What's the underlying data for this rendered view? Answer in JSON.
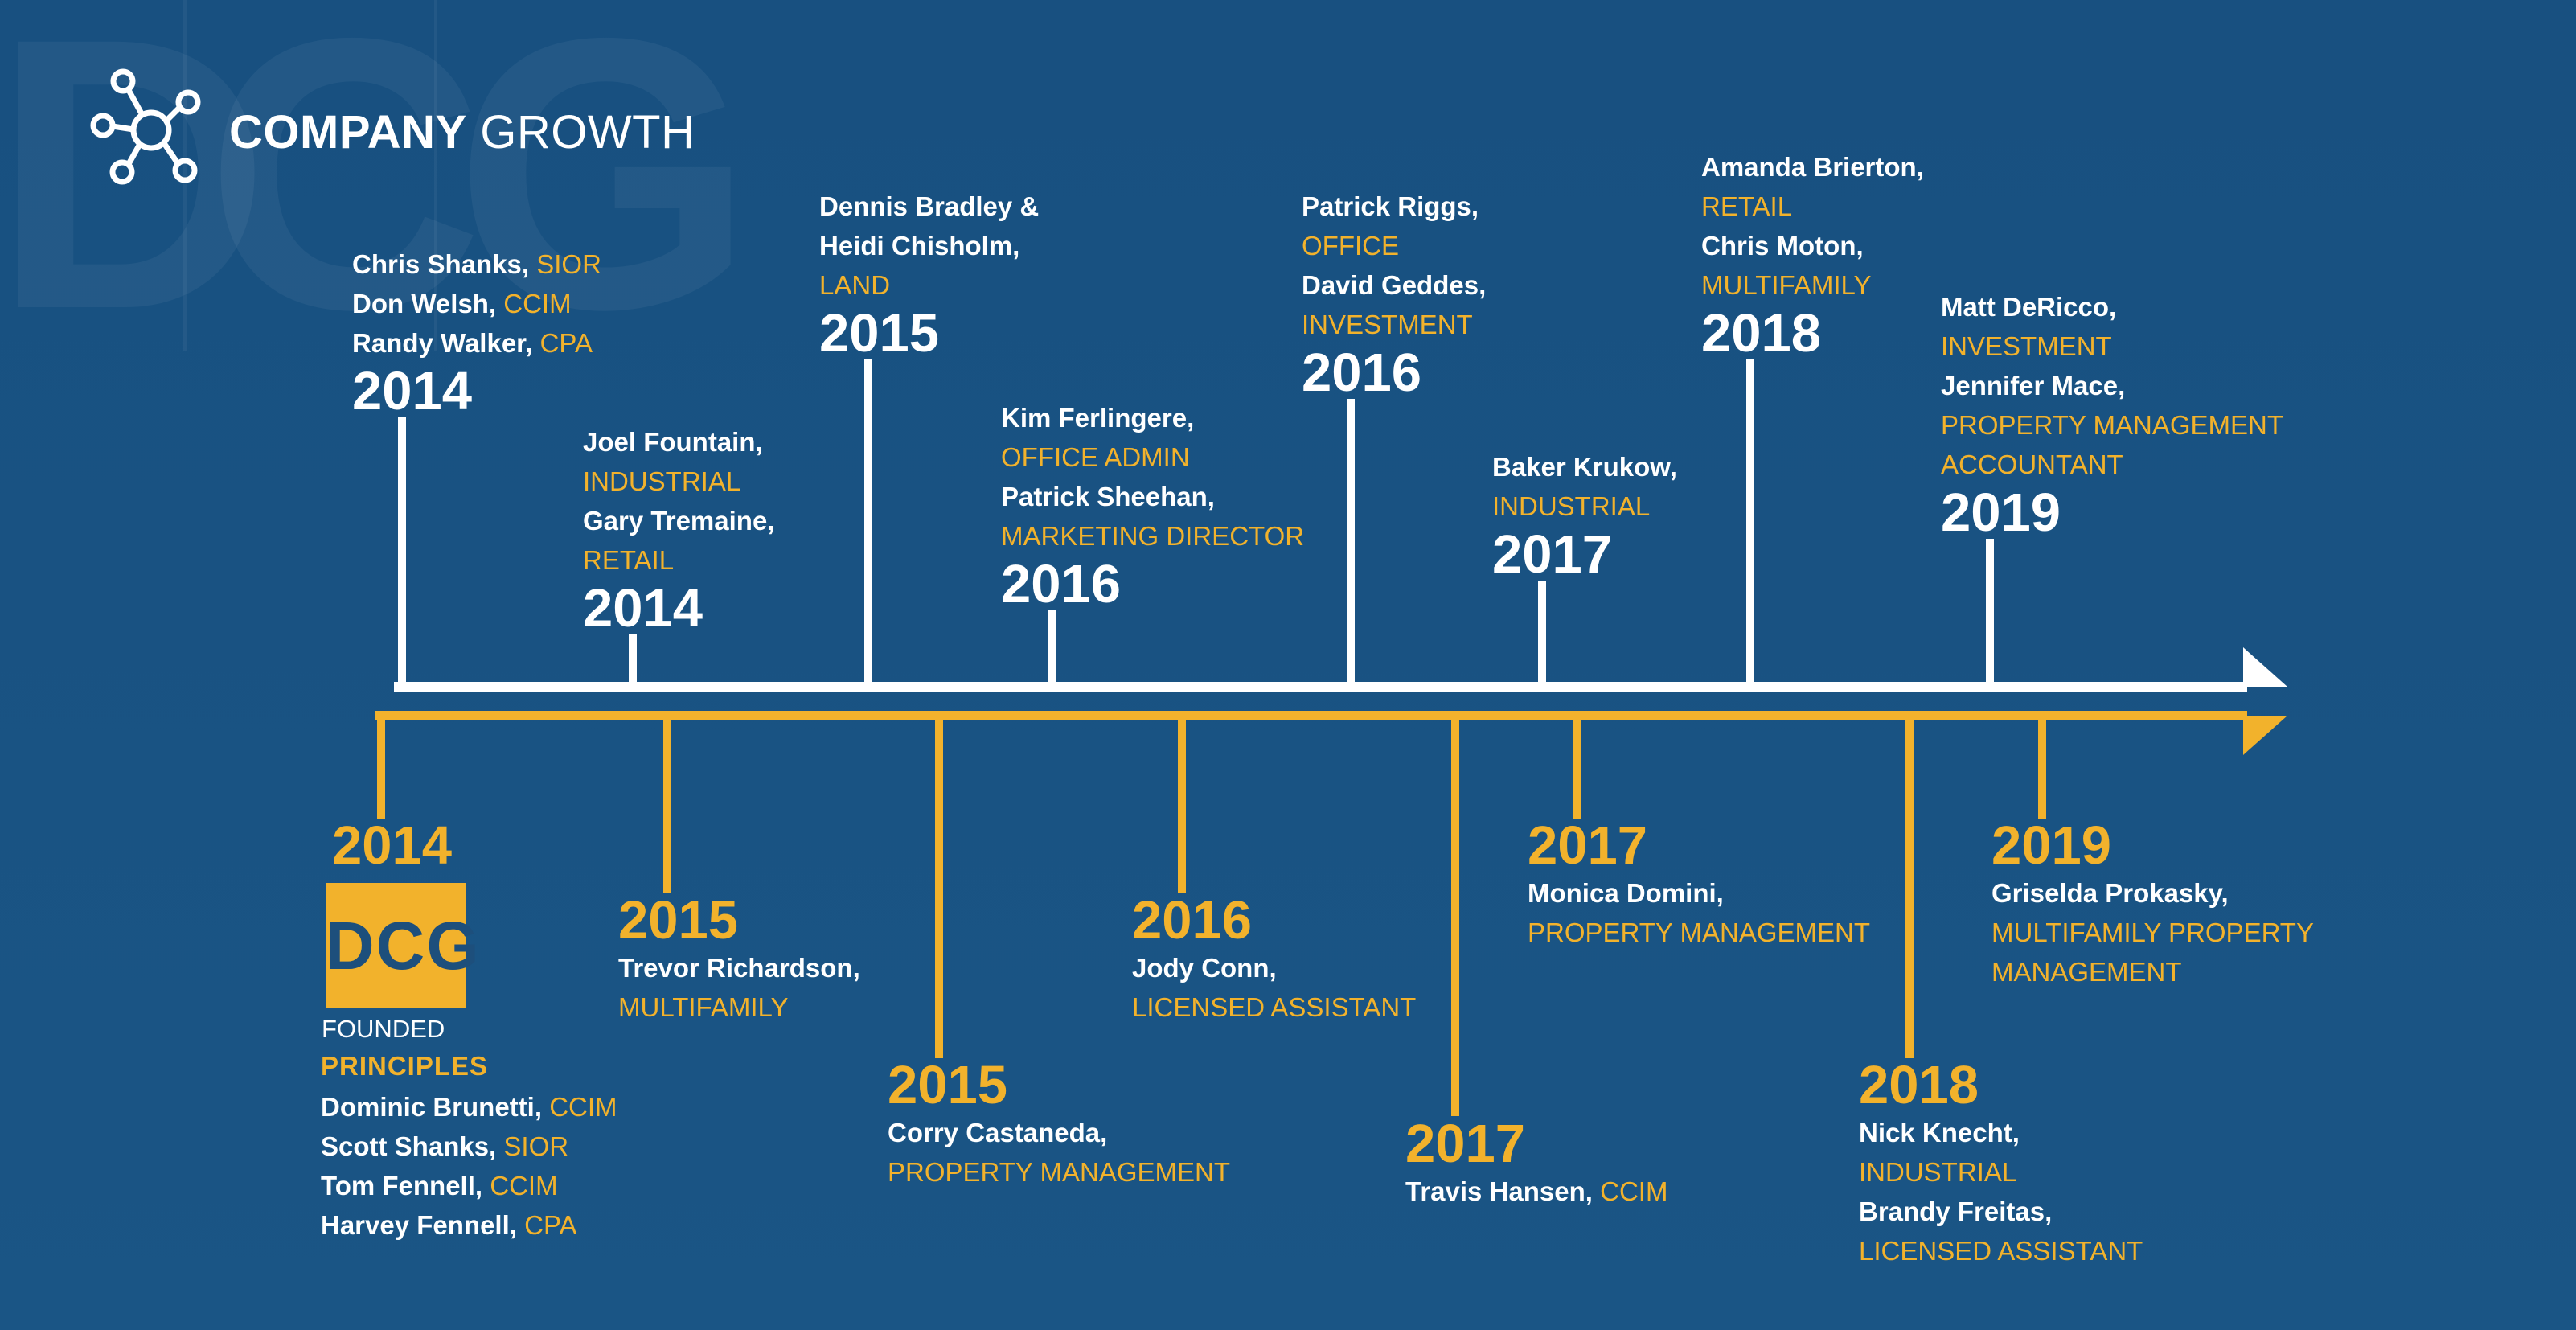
{
  "watermark": {
    "letters": [
      "D",
      "C",
      "G"
    ]
  },
  "header": {
    "title_strong": "COMPANY",
    "title_light": "GROWTH",
    "icon": "network-hub-icon"
  },
  "colors": {
    "background": "#1a5383",
    "white_line": "#ffffff",
    "gold_line": "#f2b22c",
    "accent": "#f2b22c"
  },
  "top_entries": [
    {
      "year": "2014",
      "lines": [
        {
          "name": "Chris Shanks,",
          "role": "SIOR",
          "inline": true
        },
        {
          "name": "Don Welsh,",
          "role": "CCIM",
          "inline": true
        },
        {
          "name": "Randy Walker,",
          "role": "CPA",
          "inline": true
        }
      ]
    },
    {
      "year": "2014",
      "lines": [
        {
          "name": "Joel Fountain,",
          "role": "INDUSTRIAL",
          "inline": false
        },
        {
          "name": "Gary Tremaine,",
          "role": "RETAIL",
          "inline": false
        }
      ]
    },
    {
      "year": "2015",
      "lines": [
        {
          "name": "Dennis Bradley &",
          "role": "",
          "inline": false
        },
        {
          "name": "Heidi Chisholm,",
          "role": "LAND",
          "inline": false
        }
      ]
    },
    {
      "year": "2016",
      "lines": [
        {
          "name": "Kim Ferlingere,",
          "role": "OFFICE ADMIN",
          "inline": false
        },
        {
          "name": "Patrick Sheehan,",
          "role": "MARKETING DIRECTOR",
          "inline": false
        }
      ]
    },
    {
      "year": "2016",
      "lines": [
        {
          "name": "Patrick Riggs,",
          "role": "OFFICE",
          "inline": false
        },
        {
          "name": "David Geddes,",
          "role": "INVESTMENT",
          "inline": false
        }
      ]
    },
    {
      "year": "2017",
      "lines": [
        {
          "name": "Baker Krukow,",
          "role": "INDUSTRIAL",
          "inline": false
        }
      ]
    },
    {
      "year": "2018",
      "lines": [
        {
          "name": "Amanda Brierton,",
          "role": "RETAIL",
          "inline": false
        },
        {
          "name": "Chris Moton,",
          "role": "MULTIFAMILY",
          "inline": false
        }
      ]
    },
    {
      "year": "2019",
      "lines": [
        {
          "name": "Matt DeRicco,",
          "role": "INVESTMENT",
          "inline": false
        },
        {
          "name": "Jennifer Mace,",
          "role": "PROPERTY MANAGEMENT",
          "inline": false
        },
        {
          "name": "",
          "role": "ACCOUNTANT",
          "inline": false
        }
      ]
    }
  ],
  "bottom_entries": [
    {
      "year": "2014",
      "logo_text": "DCG",
      "founded_label": "FOUNDED",
      "principles_label": "PRINCIPLES",
      "lines": [
        {
          "name": "Dominic Brunetti,",
          "role": "CCIM",
          "inline": true
        },
        {
          "name": "Scott Shanks,",
          "role": "SIOR",
          "inline": true
        },
        {
          "name": "Tom Fennell,",
          "role": "CCIM",
          "inline": true
        },
        {
          "name": "Harvey Fennell,",
          "role": "CPA",
          "inline": true
        }
      ]
    },
    {
      "year": "2015",
      "lines": [
        {
          "name": "Trevor Richardson,",
          "role": "MULTIFAMILY",
          "inline": false
        }
      ]
    },
    {
      "year": "2015",
      "lines": [
        {
          "name": "Corry Castaneda,",
          "role": "PROPERTY MANAGEMENT",
          "inline": false
        }
      ]
    },
    {
      "year": "2016",
      "lines": [
        {
          "name": "Jody Conn,",
          "role": "LICENSED ASSISTANT",
          "inline": false
        }
      ]
    },
    {
      "year": "2017",
      "lines": [
        {
          "name": "Travis Hansen,",
          "role": "CCIM",
          "inline": true
        }
      ]
    },
    {
      "year": "2017",
      "lines": [
        {
          "name": "Monica Domini,",
          "role": "PROPERTY MANAGEMENT",
          "inline": false
        }
      ]
    },
    {
      "year": "2018",
      "lines": [
        {
          "name": "Nick Knecht,",
          "role": "INDUSTRIAL",
          "inline": false
        },
        {
          "name": "Brandy Freitas,",
          "role": "LICENSED ASSISTANT",
          "inline": false
        }
      ]
    },
    {
      "year": "2019",
      "lines": [
        {
          "name": "Griselda Prokasky,",
          "role": "MULTIFAMILY PROPERTY",
          "inline": false
        },
        {
          "name": "",
          "role": "MANAGEMENT",
          "inline": false
        }
      ]
    }
  ]
}
